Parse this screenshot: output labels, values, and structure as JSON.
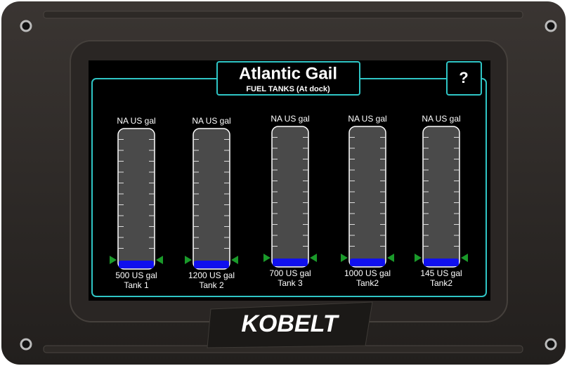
{
  "header": {
    "title": "Atlantic Gail",
    "subtitle": "FUEL TANKS (At dock)",
    "help": "?"
  },
  "tanks": [
    {
      "level": "NA US gal",
      "capacity": "500 US gal",
      "name": "Tank 1"
    },
    {
      "level": "NA US gal",
      "capacity": "1200 US gal",
      "name": "Tank 2"
    },
    {
      "level": "NA US gal",
      "capacity": "700 US gal",
      "name": "Tank 3"
    },
    {
      "level": "NA US gal",
      "capacity": "1000 US gal",
      "name": "Tank2"
    },
    {
      "level": "NA US gal",
      "capacity": "145 US gal",
      "name": "Tank2"
    }
  ],
  "brand": "KOBELT"
}
